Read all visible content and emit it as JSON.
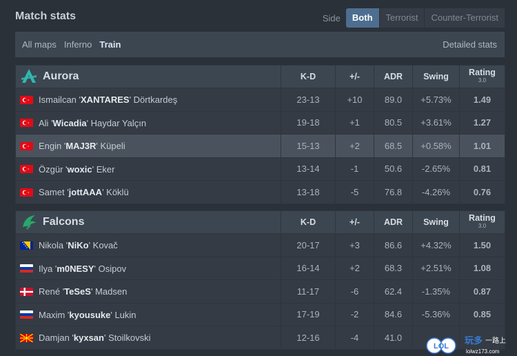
{
  "header": {
    "title": "Match stats",
    "side_label": "Side",
    "side_options": [
      "Both",
      "Terrorist",
      "Counter-Terrorist"
    ],
    "side_selected": "Both"
  },
  "maps": {
    "items": [
      "All maps",
      "Inferno",
      "Train"
    ],
    "selected": "Train",
    "detailed_label": "Detailed stats"
  },
  "columns": {
    "kd": "K-D",
    "pm": "+/-",
    "adr": "ADR",
    "swing": "Swing",
    "rating": "Rating",
    "rating_version": "3.0"
  },
  "teams": [
    {
      "name": "Aurora",
      "logo_icon": "aurora-logo-icon",
      "players": [
        {
          "first": "Ismailcan",
          "nick": "XANTARES",
          "last": "Dörtkardeş",
          "flag": "tr",
          "kd": "23-13",
          "pm": "+10",
          "adr": "89.0",
          "swing": "+5.73%",
          "rating": "1.49"
        },
        {
          "first": "Ali",
          "nick": "Wicadia",
          "last": "Haydar Yalçın",
          "flag": "tr",
          "kd": "19-18",
          "pm": "+1",
          "adr": "80.5",
          "swing": "+3.61%",
          "rating": "1.27"
        },
        {
          "first": "Engin",
          "nick": "MAJ3R",
          "last": "Küpeli",
          "flag": "tr",
          "kd": "15-13",
          "pm": "+2",
          "adr": "68.5",
          "swing": "+0.58%",
          "rating": "1.01"
        },
        {
          "first": "Özgür",
          "nick": "woxic",
          "last": "Eker",
          "flag": "tr",
          "kd": "13-14",
          "pm": "-1",
          "adr": "50.6",
          "swing": "-2.65%",
          "rating": "0.81"
        },
        {
          "first": "Samet",
          "nick": "jottAAA",
          "last": "Köklü",
          "flag": "tr",
          "kd": "13-18",
          "pm": "-5",
          "adr": "76.8",
          "swing": "-4.26%",
          "rating": "0.76"
        }
      ]
    },
    {
      "name": "Falcons",
      "logo_icon": "falcons-logo-icon",
      "players": [
        {
          "first": "Nikola",
          "nick": "NiKo",
          "last": "Kovač",
          "flag": "ba",
          "kd": "20-17",
          "pm": "+3",
          "adr": "86.6",
          "swing": "+4.32%",
          "rating": "1.50"
        },
        {
          "first": "Ilya",
          "nick": "m0NESY",
          "last": "Osipov",
          "flag": "ru",
          "kd": "16-14",
          "pm": "+2",
          "adr": "68.3",
          "swing": "+2.51%",
          "rating": "1.08"
        },
        {
          "first": "René",
          "nick": "TeSeS",
          "last": "Madsen",
          "flag": "dk",
          "kd": "11-17",
          "pm": "-6",
          "adr": "62.4",
          "swing": "-1.35%",
          "rating": "0.87"
        },
        {
          "first": "Maxim",
          "nick": "kyousuke",
          "last": "Lukin",
          "flag": "ru",
          "kd": "17-19",
          "pm": "-2",
          "adr": "84.6",
          "swing": "-5.36%",
          "rating": "0.85"
        },
        {
          "first": "Damjan",
          "nick": "kyxsan",
          "last": "Stoilkovski",
          "flag": "mk",
          "kd": "12-16",
          "pm": "-4",
          "adr": "41.0",
          "swing": "-",
          "rating": ""
        }
      ]
    }
  ],
  "watermark": {
    "logo_text": "LOL",
    "brand_text": "玩多",
    "suffix_text": "一路上",
    "url_text": "lolwz173.com"
  },
  "colors": {
    "positive": "#3fbd36",
    "negative": "#e0403a",
    "accent": "#4d6e90",
    "aurora_teal": "#2fb8b0",
    "falcons_green": "#27a86a"
  }
}
